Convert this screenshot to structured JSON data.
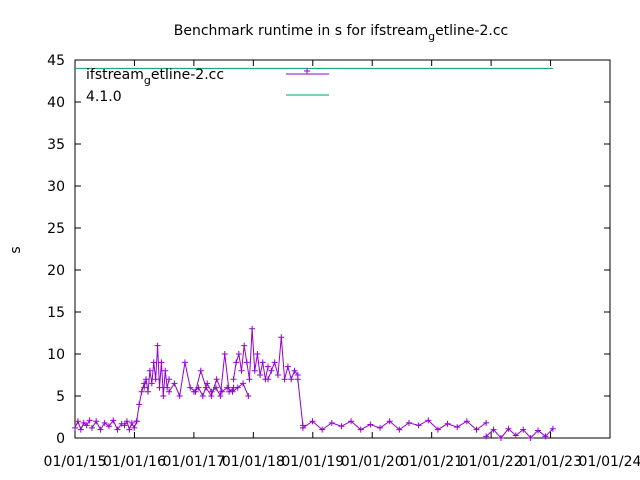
{
  "chart_data": {
    "type": "line",
    "title": {
      "main": "Benchmark runtime in s for ifstream",
      "sub": "g",
      "tail": "etline-2.cc"
    },
    "xlabel": "",
    "ylabel": "s",
    "ylim": [
      0,
      45
    ],
    "yticks": [
      0,
      5,
      10,
      15,
      20,
      25,
      30,
      35,
      40,
      45
    ],
    "xlim": [
      "2015-01-01",
      "2024-01-01"
    ],
    "xticks": [
      "01/01/15",
      "01/01/16",
      "01/01/17",
      "01/01/18",
      "01/01/19",
      "01/01/20",
      "01/01/21",
      "01/01/22",
      "01/01/23",
      "01/01/24"
    ],
    "grid": false,
    "legend_position": "top-left",
    "series": [
      {
        "name": {
          "main": "ifstream",
          "sub": "g",
          "tail": "etline-2.cc"
        },
        "color": "#9400d3",
        "style": "linespoints",
        "segments": [
          {
            "from": "2015-01-01",
            "to": "2015-04-01",
            "values": [
              1.2,
              2.0,
              1.0,
              1.8,
              1.5,
              2.1
            ]
          },
          {
            "from": "2015-04-15",
            "to": "2015-10-15",
            "values": [
              1.2,
              2.0,
              1.0,
              1.8,
              1.4,
              2.1,
              1.0,
              1.7
            ]
          },
          {
            "from": "2015-11-01",
            "to": "2016-01-15",
            "values": [
              1.5,
              2.0,
              1.0,
              1.8,
              1.2,
              2.0
            ]
          },
          {
            "from": "2016-01-15",
            "to": "2016-03-01",
            "values": [
              2.0,
              4.0,
              5.5,
              6.5
            ]
          },
          {
            "from": "2016-03-01",
            "to": "2016-08-01",
            "values": [
              6.0,
              7.0,
              5.5,
              8.0,
              6.5,
              9.0,
              7.0,
              11.0,
              6.0,
              9.0,
              5.0,
              8.0,
              6.0,
              7.0
            ]
          },
          {
            "from": "2016-08-01",
            "to": "2017-12-01",
            "values": [
              5.5,
              6.5,
              5.0,
              9.0,
              6.0,
              5.5,
              8.0,
              6.0,
              5.0,
              7.0,
              5.5,
              6.0,
              5.5,
              6.0,
              6.5,
              5.0
            ]
          },
          {
            "from": "2017-01-01",
            "to": "2017-09-01",
            "values": [
              5.5,
              6.0,
              5.0,
              6.5,
              5.5,
              6.0,
              5.0,
              10.0,
              5.5,
              6.0
            ]
          },
          {
            "from": "2017-09-01",
            "to": "2018-04-01",
            "values": [
              7.0,
              9.0,
              10.0,
              8.0,
              11.0,
              9.0,
              7.0,
              13.0,
              8.0,
              10.0,
              7.5,
              9.0,
              7.0,
              8.5
            ]
          },
          {
            "from": "2018-04-01",
            "to": "2018-10-01",
            "values": [
              7.0,
              8.0,
              9.0,
              7.5,
              12.0,
              7.0,
              8.5,
              7.0,
              8.0,
              7.5
            ]
          },
          {
            "from": "2018-10-01",
            "to": "2018-11-01",
            "values": [
              7.0,
              1.5
            ]
          },
          {
            "from": "2018-11-01",
            "to": "2021-12-01",
            "values": [
              1.2,
              2.0,
              1.0,
              1.8,
              1.4,
              2.0,
              1.0,
              1.6,
              1.2,
              2.0,
              1.0,
              1.8,
              1.5,
              2.1,
              1.0,
              1.7,
              1.3,
              2.0,
              1.0,
              1.8
            ]
          },
          {
            "from": "2021-12-01",
            "to": "2023-01-15",
            "values": [
              0.2,
              1.0,
              0.0,
              1.1,
              0.3,
              1.0,
              0.0,
              0.9,
              0.2,
              1.1
            ]
          }
        ]
      },
      {
        "name": "4.1.0",
        "color": "#009e73",
        "style": "lines",
        "x": [
          "2015-01-01",
          "2023-01-15"
        ],
        "values": [
          44,
          44
        ]
      }
    ]
  }
}
